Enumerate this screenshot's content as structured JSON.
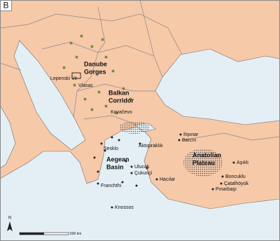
{
  "panel_label": "B",
  "regions": [
    {
      "lines": [
        "Danube",
        "Gorges"
      ]
    },
    {
      "lines": [
        "Balkan",
        "Corridor"
      ]
    },
    {
      "lines": [
        "Aegean",
        "Basin"
      ]
    },
    {
      "lines": [
        "Anatolian",
        "Plateau"
      ]
    }
  ],
  "sites": [
    "Lepenski Vir",
    "Vlasac",
    "Kovačevo",
    "Ilıpınar",
    "Barcın",
    "Aktopraklık",
    "Sesklo",
    "Ulucak",
    "Çukuriçi",
    "Franchthi",
    "Hacılar",
    "Aşıklı",
    "Boncuklu",
    "Çatalhöyük",
    "Pınarbaşı",
    "Knossos"
  ],
  "north": "N",
  "scale_bar": "500 km"
}
